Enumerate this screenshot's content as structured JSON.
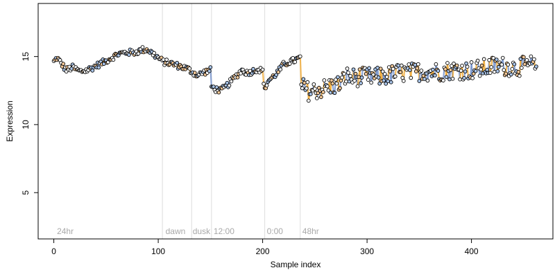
{
  "chart_data": {
    "type": "scatter",
    "xlabel": "Sample index",
    "ylabel": "Expression",
    "xlim": [
      -15,
      478
    ],
    "ylim": [
      1.6,
      18.9
    ],
    "x_ticks": [
      0,
      100,
      200,
      300,
      400
    ],
    "y_ticks": [
      5,
      10,
      15
    ],
    "grid": false,
    "colors": {
      "line_blue": "#6f8fc9",
      "line_orange": "#f0a830",
      "divider": "#dcdcdc",
      "phase_label": "#a8a8a8",
      "point_edge": "#000000"
    },
    "phase_dividers": [
      104,
      132,
      151,
      202,
      236
    ],
    "phase_labels": [
      {
        "x": 3,
        "text": "24hr"
      },
      {
        "x": 107,
        "text": "dawn"
      },
      {
        "x": 133,
        "text": "dusk"
      },
      {
        "x": 153,
        "text": "12:00"
      },
      {
        "x": 204,
        "text": "0:00"
      },
      {
        "x": 238,
        "text": "48hr"
      }
    ],
    "anchors": [
      [
        0,
        14.6
      ],
      [
        3,
        14.9
      ],
      [
        8,
        14.4
      ],
      [
        12,
        14.0
      ],
      [
        18,
        14.2
      ],
      [
        25,
        13.9
      ],
      [
        32,
        14.0
      ],
      [
        40,
        14.3
      ],
      [
        48,
        14.6
      ],
      [
        55,
        14.9
      ],
      [
        62,
        15.2
      ],
      [
        70,
        15.3
      ],
      [
        78,
        15.3
      ],
      [
        85,
        15.5
      ],
      [
        90,
        15.5
      ],
      [
        95,
        15.2
      ],
      [
        100,
        14.9
      ],
      [
        105,
        14.6
      ],
      [
        112,
        14.5
      ],
      [
        120,
        14.3
      ],
      [
        128,
        14.1
      ],
      [
        134,
        13.8
      ],
      [
        138,
        13.6
      ],
      [
        142,
        13.8
      ],
      [
        146,
        13.9
      ],
      [
        150,
        14.0
      ],
      [
        151,
        12.8
      ],
      [
        155,
        12.6
      ],
      [
        160,
        12.5
      ],
      [
        165,
        12.8
      ],
      [
        170,
        13.2
      ],
      [
        175,
        13.6
      ],
      [
        180,
        14.0
      ],
      [
        185,
        13.8
      ],
      [
        190,
        13.9
      ],
      [
        195,
        14.1
      ],
      [
        200,
        13.9
      ],
      [
        202,
        12.5
      ],
      [
        205,
        13.2
      ],
      [
        210,
        13.5
      ],
      [
        215,
        13.9
      ],
      [
        220,
        14.4
      ],
      [
        225,
        14.6
      ],
      [
        230,
        14.7
      ],
      [
        236,
        14.9
      ],
      [
        237,
        12.8
      ],
      [
        245,
        12.4
      ],
      [
        255,
        12.6
      ],
      [
        265,
        12.8
      ],
      [
        275,
        13.0
      ],
      [
        280,
        13.6
      ],
      [
        285,
        13.4
      ],
      [
        290,
        13.5
      ],
      [
        300,
        13.5
      ],
      [
        310,
        13.5
      ],
      [
        320,
        13.6
      ],
      [
        330,
        13.8
      ],
      [
        340,
        13.8
      ],
      [
        350,
        13.9
      ],
      [
        360,
        13.9
      ],
      [
        370,
        13.9
      ],
      [
        380,
        14.0
      ],
      [
        390,
        14.0
      ],
      [
        400,
        14.0
      ],
      [
        410,
        14.1
      ],
      [
        420,
        14.3
      ],
      [
        430,
        14.3
      ],
      [
        440,
        14.2
      ],
      [
        450,
        14.3
      ],
      [
        458,
        14.4
      ],
      [
        462,
        14.1
      ]
    ]
  }
}
